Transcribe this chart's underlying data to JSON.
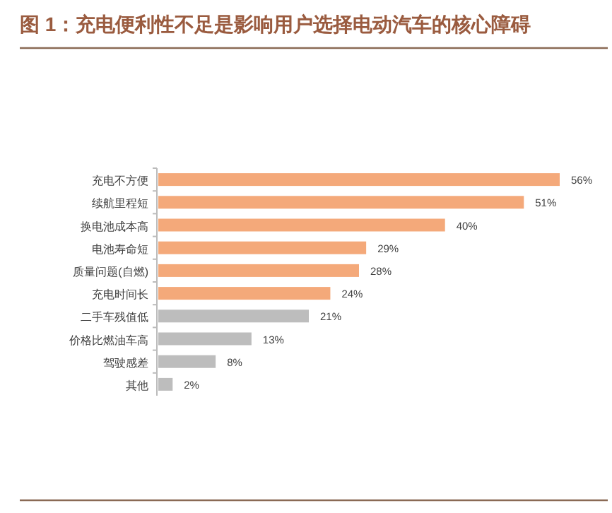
{
  "chart_data": {
    "type": "bar",
    "orientation": "horizontal",
    "title": "图 1：充电便利性不足是影响用户选择电动汽车的核心障碍",
    "categories": [
      "充电不方便",
      "续航里程短",
      "换电池成本高",
      "电池寿命短",
      "质量问题(自燃)",
      "充电时间长",
      "二手车残值低",
      "价格比燃油车高",
      "驾驶感差",
      "其他"
    ],
    "values": [
      56,
      51,
      40,
      29,
      28,
      24,
      21,
      13,
      8,
      2
    ],
    "colors": [
      "#f4a97a",
      "#f4a97a",
      "#f4a97a",
      "#f4a97a",
      "#f4a97a",
      "#f4a97a",
      "#bdbdbd",
      "#bdbdbd",
      "#bdbdbd",
      "#bdbdbd"
    ],
    "value_labels": [
      "56%",
      "51%",
      "40%",
      "29%",
      "28%",
      "24%",
      "21%",
      "13%",
      "8%",
      "2%"
    ],
    "tick_labels": "y"
  }
}
